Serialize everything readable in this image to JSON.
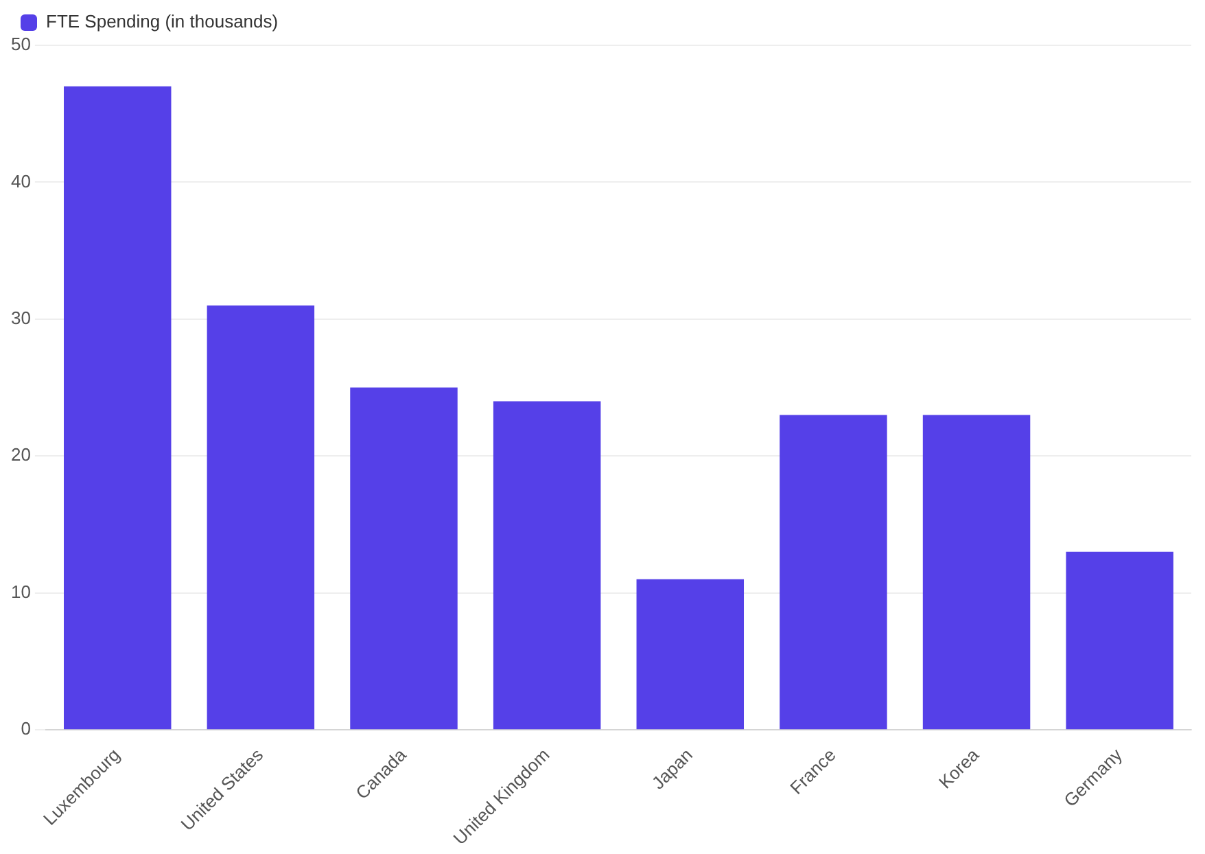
{
  "chart_data": {
    "type": "bar",
    "categories": [
      "Luxembourg",
      "United States",
      "Canada",
      "United Kingdom",
      "Japan",
      "France",
      "Korea",
      "Germany"
    ],
    "series": [
      {
        "name": "FTE Spending (in thousands)",
        "color": "#5540e8",
        "values": [
          47,
          31,
          25,
          24,
          11,
          23,
          23,
          13
        ]
      }
    ],
    "ylim": [
      0,
      50
    ],
    "yticks": [
      0,
      10,
      20,
      30,
      40,
      50
    ],
    "grid": "y",
    "legend": "top left"
  }
}
